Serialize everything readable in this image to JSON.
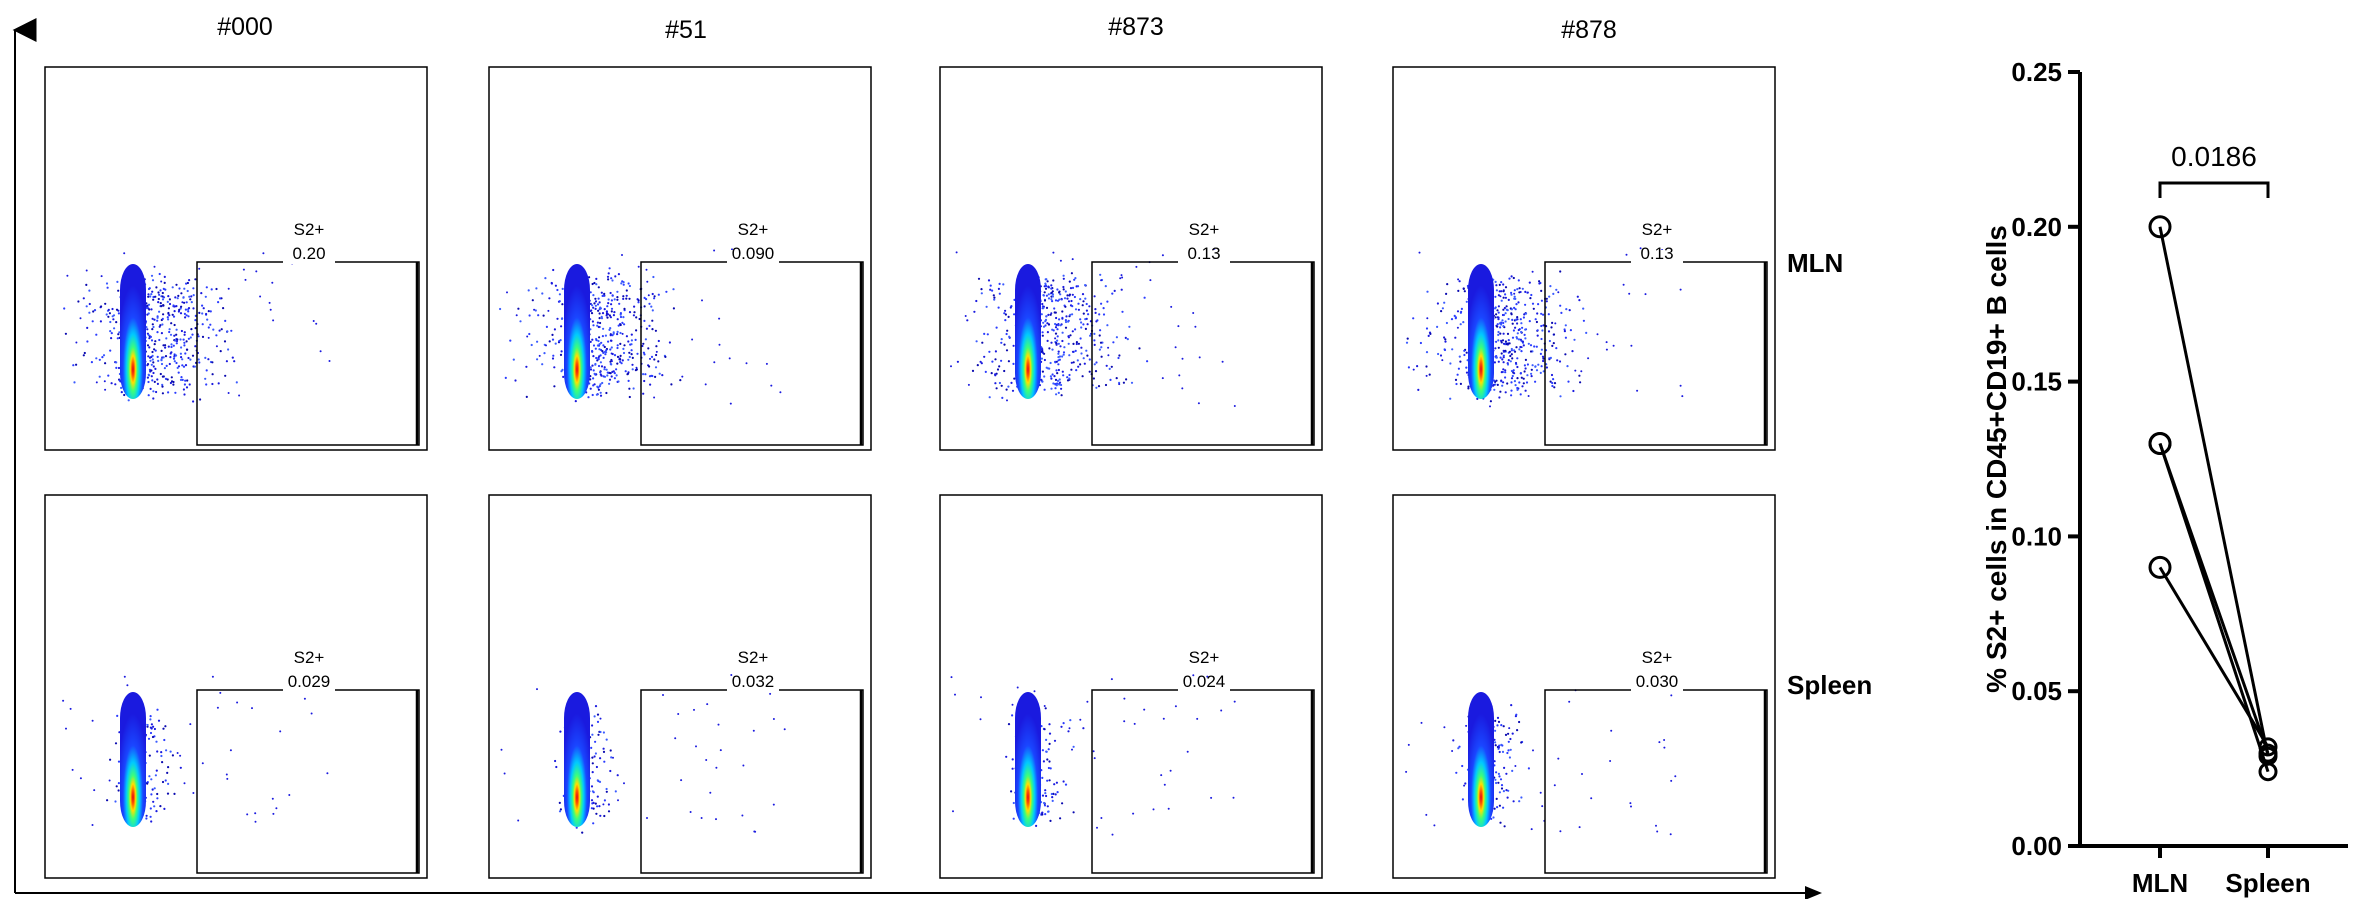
{
  "flow_panels": {
    "columns": [
      "#000",
      "#51",
      "#873",
      "#878"
    ],
    "rows": [
      "MLN",
      "Spleen"
    ],
    "gate_name": "S2+",
    "gate_values": [
      [
        "0.20",
        "0.090",
        "0.13",
        "0.13"
      ],
      [
        "0.029",
        "0.032",
        "0.024",
        "0.030"
      ]
    ],
    "density_colors": [
      "#1a1adf",
      "#00b4ff",
      "#3cff7a",
      "#ffe000",
      "#ff3a00"
    ]
  },
  "chart_data": {
    "type": "scatter",
    "subtype": "paired dot plot",
    "categories": [
      "MLN",
      "Spleen"
    ],
    "ylabel": "% S2+ cells in CD45+CD19+ B cells",
    "ylim": [
      0,
      0.25
    ],
    "yticks": [
      "0.00",
      "0.05",
      "0.10",
      "0.15",
      "0.20",
      "0.25"
    ],
    "pairs": [
      {
        "MLN": 0.2,
        "Spleen": 0.029
      },
      {
        "MLN": 0.09,
        "Spleen": 0.032
      },
      {
        "MLN": 0.13,
        "Spleen": 0.024
      },
      {
        "MLN": 0.13,
        "Spleen": 0.03
      }
    ],
    "annotation": {
      "text": "0.0186",
      "between": [
        "MLN",
        "Spleen"
      ]
    }
  }
}
